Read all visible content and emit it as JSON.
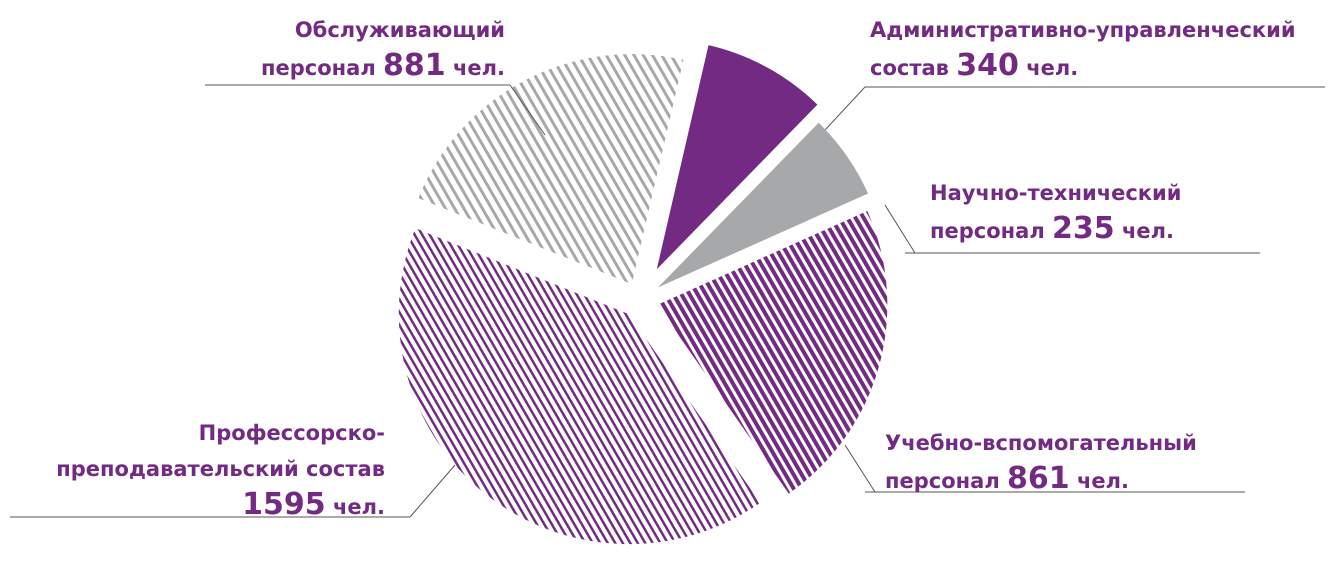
{
  "chart_data": {
    "type": "pie",
    "categories": [
      "Административно-управленческий состав",
      "Научно-технический персонал",
      "Учебно-вспомогательный персонал",
      "Профессорско-преподавательский состав",
      "Обслуживающий персонал"
    ],
    "values": [
      340,
      235,
      861,
      1595,
      881
    ],
    "unit": "чел.",
    "colors": [
      "#722a82",
      "#a7a8aa",
      "#722a82",
      "#722a82",
      "#a7a8aa"
    ],
    "hatch": [
      false,
      false,
      true,
      true,
      true
    ]
  }
}
